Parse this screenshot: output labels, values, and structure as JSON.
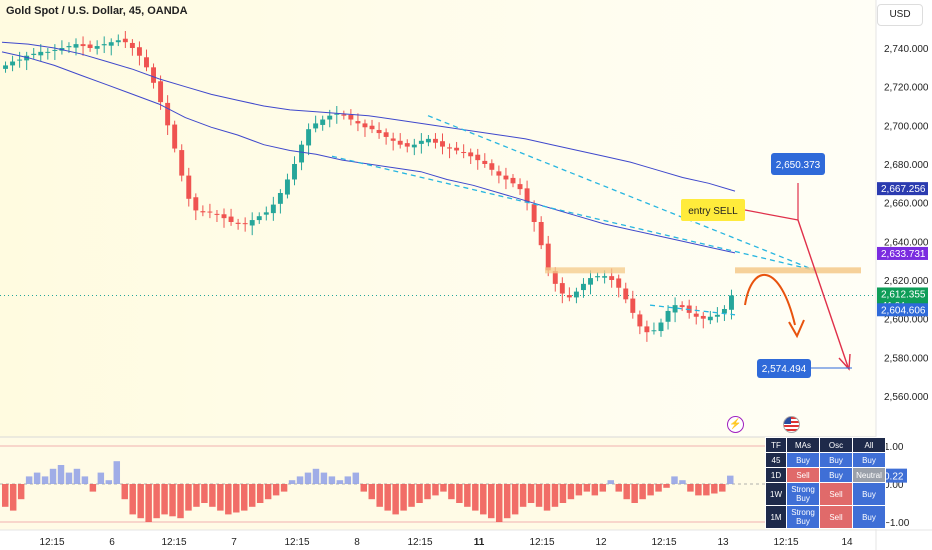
{
  "chart_title": "Gold Spot / U.S. Dollar, 45, OANDA",
  "currency_button": "USD",
  "colors": {
    "bull": "#26a69a",
    "bear": "#ef5350",
    "ma": "#3f48cc",
    "trend": "#27b6e0",
    "arrow_red": "#e0304a",
    "arrow_orange": "#e8530e",
    "zone": "#f4c98a",
    "label_blue": "#2f6ad9"
  },
  "chart_data": [
    {
      "type": "candlestick",
      "title": "Gold Spot / U.S. Dollar, 45, OANDA",
      "y_ticks": [
        "2,740.000",
        "2,720.000",
        "2,700.000",
        "2,680.000",
        "2,660.000",
        "2,640.000",
        "2,620.000",
        "2,600.000",
        "2,580.000",
        "2,560.000"
      ],
      "y_tick_values": [
        2740,
        2720,
        2700,
        2680,
        2660,
        2640,
        2620,
        2600,
        2580,
        2560
      ],
      "ylim": [
        2550,
        2752
      ],
      "x_ticks": [
        "12:15",
        "6",
        "12:15",
        "7",
        "12:15",
        "8",
        "12:15",
        "11",
        "12:15",
        "12",
        "12:15",
        "13",
        "12:15",
        "14"
      ],
      "x_tick_bold": [
        false,
        false,
        false,
        false,
        false,
        false,
        false,
        true,
        false,
        false,
        false,
        false,
        false,
        false
      ],
      "series": [
        {
          "name": "",
          "role": "close",
          "values": [
            2731,
            2733,
            2734,
            2736,
            2737,
            2738,
            2738,
            2739,
            2740,
            2741,
            2742,
            2741,
            2740,
            2741,
            2742,
            2743,
            2744,
            2743,
            2740,
            2736,
            2730,
            2722,
            2712,
            2700,
            2688,
            2674,
            2662,
            2656,
            2655,
            2655,
            2654,
            2652,
            2650,
            2649,
            2649,
            2651,
            2653,
            2655,
            2659,
            2665,
            2672,
            2680,
            2690,
            2698,
            2701,
            2703,
            2705,
            2706,
            2705,
            2703,
            2701,
            2699,
            2698,
            2696,
            2694,
            2692,
            2690,
            2689,
            2690,
            2692,
            2693,
            2691,
            2689,
            2688,
            2687,
            2686,
            2684,
            2682,
            2680,
            2677,
            2674,
            2672,
            2670,
            2667,
            2660,
            2650,
            2638,
            2625,
            2618,
            2613,
            2611,
            2614,
            2618,
            2621,
            2622,
            2622,
            2620,
            2616,
            2610,
            2603,
            2596,
            2593,
            2594,
            2598,
            2604,
            2607,
            2606,
            2603,
            2601,
            2600,
            2601,
            2602,
            2605,
            2612
          ]
        },
        {
          "name": "",
          "role": "ma_fast",
          "values": [
            2738,
            2735,
            2731,
            2726,
            2721,
            2716,
            2711,
            2704,
            2699,
            2695,
            2690,
            2687,
            2685,
            2682,
            2680,
            2678,
            2676,
            2672,
            2669,
            2665,
            2661,
            2657,
            2653,
            2649,
            2646,
            2643,
            2640,
            2637,
            2634
          ]
        },
        {
          "name": "",
          "role": "ma_slow",
          "values": [
            2743,
            2742,
            2740,
            2737,
            2733,
            2729,
            2724,
            2720,
            2716,
            2713,
            2710,
            2708,
            2707,
            2706,
            2705,
            2703,
            2701,
            2699,
            2697,
            2695,
            2693,
            2690,
            2687,
            2684,
            2681,
            2677,
            2673,
            2670,
            2666
          ]
        }
      ],
      "annotations": {
        "entry_label": "entry SELL",
        "target_up_value": "2,650.373",
        "target_down_value": "2,574.494",
        "price_tag_upper": "2,667.256",
        "price_tag_mid": "2,633.731",
        "price_tag_last": "2,612.355",
        "price_tag_countdown": "11:24",
        "price_tag_low": "2,604.606",
        "zone_price": 2625
      }
    },
    {
      "type": "bar",
      "title": "",
      "y_ticks": [
        "1.00",
        "0.00",
        "−1.00"
      ],
      "y_tick_values": [
        1,
        0,
        -1
      ],
      "ylim": [
        -1.25,
        1.2
      ],
      "current_value": "0.22",
      "values": [
        -0.6,
        -0.7,
        -0.4,
        0.2,
        0.3,
        0.2,
        0.4,
        0.5,
        0.3,
        0.4,
        0.2,
        -0.2,
        0.3,
        0.1,
        0.6,
        -0.4,
        -0.8,
        -0.9,
        -1.0,
        -0.9,
        -0.8,
        -0.85,
        -0.9,
        -0.7,
        -0.6,
        -0.5,
        -0.6,
        -0.7,
        -0.8,
        -0.75,
        -0.7,
        -0.6,
        -0.5,
        -0.4,
        -0.3,
        -0.2,
        0.1,
        0.2,
        0.3,
        0.4,
        0.3,
        0.2,
        0.1,
        0.2,
        0.3,
        -0.2,
        -0.4,
        -0.6,
        -0.7,
        -0.8,
        -0.7,
        -0.6,
        -0.5,
        -0.4,
        -0.3,
        -0.2,
        -0.4,
        -0.5,
        -0.6,
        -0.7,
        -0.8,
        -0.9,
        -1.0,
        -0.9,
        -0.8,
        -0.6,
        -0.5,
        -0.6,
        -0.7,
        -0.6,
        -0.5,
        -0.4,
        -0.3,
        -0.2,
        -0.3,
        -0.2,
        0.1,
        -0.2,
        -0.4,
        -0.5,
        -0.4,
        -0.3,
        -0.2,
        -0.1,
        0.2,
        0.1,
        -0.2,
        -0.3,
        -0.3,
        -0.25,
        -0.2,
        0.22
      ]
    }
  ],
  "tech_table": {
    "headers": [
      "TF",
      "MAs",
      "Osc",
      "All"
    ],
    "rows": [
      {
        "tf": "45",
        "mas": "Buy",
        "osc": "Buy",
        "all": "Buy",
        "mas_c": "buy",
        "osc_c": "buy",
        "all_c": "buy"
      },
      {
        "tf": "1D",
        "mas": "Sell",
        "osc": "Buy",
        "all": "Neutral",
        "mas_c": "sell",
        "osc_c": "buy",
        "all_c": "neu"
      },
      {
        "tf": "1W",
        "mas": "Strong Buy",
        "osc": "Sell",
        "all": "Buy",
        "mas_c": "buy",
        "osc_c": "sell",
        "all_c": "buy"
      },
      {
        "tf": "1M",
        "mas": "Strong Buy",
        "osc": "Sell",
        "all": "Buy",
        "mas_c": "buy",
        "osc_c": "sell",
        "all_c": "buy"
      }
    ]
  }
}
